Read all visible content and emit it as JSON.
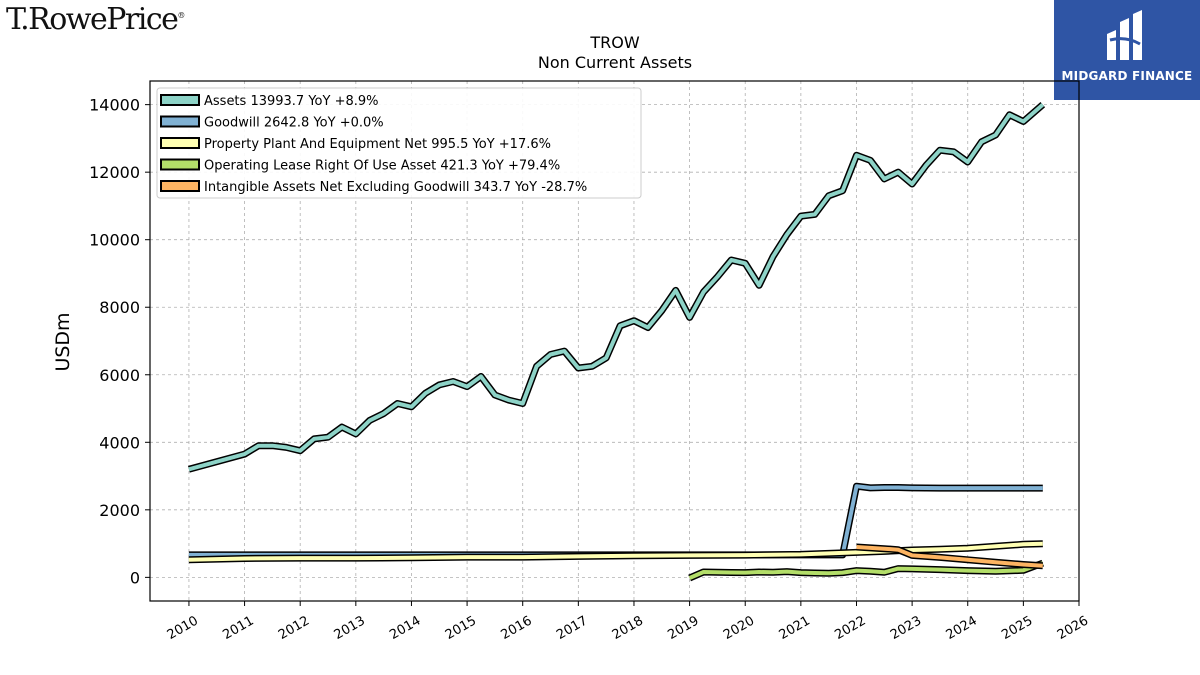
{
  "brand": {
    "logo_text": "T.RowePrice",
    "registered_mark": "®"
  },
  "partner": {
    "name": "MIDGARD FINANCE"
  },
  "chart_data": {
    "type": "line",
    "title": "TROW",
    "subtitle": "Non Current  Assets",
    "ylabel": "USDm",
    "xlabel": "",
    "xlim": [
      2009.3,
      2026.0
    ],
    "ylim": [
      -700,
      14700
    ],
    "yticks": [
      0,
      2000,
      4000,
      6000,
      8000,
      10000,
      12000,
      14000
    ],
    "xticks": [
      2010,
      2011,
      2012,
      2013,
      2014,
      2015,
      2016,
      2017,
      2018,
      2019,
      2020,
      2021,
      2022,
      2023,
      2024,
      2025,
      2026
    ],
    "grid": true,
    "legend_position": "top-left",
    "series": [
      {
        "name": "Assets",
        "legend_label": "Assets  13993.7 YoY +8.9%",
        "color": "#8dd3c7",
        "points": [
          [
            2010.0,
            3200
          ],
          [
            2011.0,
            3650
          ],
          [
            2011.25,
            3900
          ],
          [
            2011.5,
            3900
          ],
          [
            2011.75,
            3850
          ],
          [
            2012.0,
            3750
          ],
          [
            2012.25,
            4100
          ],
          [
            2012.5,
            4150
          ],
          [
            2012.75,
            4450
          ],
          [
            2013.0,
            4250
          ],
          [
            2013.25,
            4650
          ],
          [
            2013.5,
            4850
          ],
          [
            2013.75,
            5150
          ],
          [
            2014.0,
            5050
          ],
          [
            2014.25,
            5450
          ],
          [
            2014.5,
            5700
          ],
          [
            2014.75,
            5800
          ],
          [
            2015.0,
            5650
          ],
          [
            2015.25,
            5950
          ],
          [
            2015.5,
            5400
          ],
          [
            2015.75,
            5250
          ],
          [
            2016.0,
            5150
          ],
          [
            2016.25,
            6250
          ],
          [
            2016.5,
            6600
          ],
          [
            2016.75,
            6700
          ],
          [
            2017.0,
            6200
          ],
          [
            2017.25,
            6250
          ],
          [
            2017.5,
            6500
          ],
          [
            2017.75,
            7450
          ],
          [
            2018.0,
            7600
          ],
          [
            2018.25,
            7400
          ],
          [
            2018.5,
            7900
          ],
          [
            2018.75,
            8500
          ],
          [
            2019.0,
            7700
          ],
          [
            2019.25,
            8450
          ],
          [
            2019.5,
            8900
          ],
          [
            2019.75,
            9400
          ],
          [
            2020.0,
            9300
          ],
          [
            2020.25,
            8650
          ],
          [
            2020.5,
            9500
          ],
          [
            2020.75,
            10150
          ],
          [
            2021.0,
            10700
          ],
          [
            2021.25,
            10750
          ],
          [
            2021.5,
            11300
          ],
          [
            2021.75,
            11450
          ],
          [
            2022.0,
            12500
          ],
          [
            2022.25,
            12350
          ],
          [
            2022.5,
            11800
          ],
          [
            2022.75,
            12000
          ],
          [
            2023.0,
            11650
          ],
          [
            2023.25,
            12200
          ],
          [
            2023.5,
            12650
          ],
          [
            2023.75,
            12600
          ],
          [
            2024.0,
            12300
          ],
          [
            2024.25,
            12900
          ],
          [
            2024.5,
            13100
          ],
          [
            2024.75,
            13700
          ],
          [
            2025.0,
            13500
          ],
          [
            2025.35,
            14000
          ]
        ]
      },
      {
        "name": "Goodwill",
        "legend_label": "Goodwill  2642.8 YoY +0.0%",
        "color": "#80b1d3",
        "points": [
          [
            2010.0,
            665
          ],
          [
            2011.0,
            665
          ],
          [
            2012.0,
            665
          ],
          [
            2013.0,
            665
          ],
          [
            2014.0,
            665
          ],
          [
            2015.0,
            665
          ],
          [
            2016.0,
            665
          ],
          [
            2017.0,
            665
          ],
          [
            2018.0,
            665
          ],
          [
            2019.0,
            665
          ],
          [
            2020.0,
            665
          ],
          [
            2021.0,
            665
          ],
          [
            2021.75,
            665
          ],
          [
            2022.0,
            2700
          ],
          [
            2022.25,
            2650
          ],
          [
            2022.5,
            2660
          ],
          [
            2022.75,
            2660
          ],
          [
            2023.0,
            2650
          ],
          [
            2023.5,
            2643
          ],
          [
            2024.0,
            2643
          ],
          [
            2024.5,
            2643
          ],
          [
            2025.0,
            2643
          ],
          [
            2025.35,
            2643
          ]
        ]
      },
      {
        "name": "Property Plant And Equipment Net",
        "legend_label": "Property Plant And Equipment Net  995.5 YoY +17.6%",
        "color": "#ffffb3",
        "points": [
          [
            2010.0,
            520
          ],
          [
            2011.0,
            560
          ],
          [
            2012.0,
            570
          ],
          [
            2013.0,
            570
          ],
          [
            2014.0,
            580
          ],
          [
            2015.0,
            600
          ],
          [
            2016.0,
            600
          ],
          [
            2017.0,
            620
          ],
          [
            2018.0,
            640
          ],
          [
            2019.0,
            650
          ],
          [
            2020.0,
            660
          ],
          [
            2021.0,
            680
          ],
          [
            2022.0,
            740
          ],
          [
            2022.5,
            770
          ],
          [
            2023.0,
            810
          ],
          [
            2023.5,
            830
          ],
          [
            2024.0,
            860
          ],
          [
            2024.5,
            920
          ],
          [
            2025.0,
            980
          ],
          [
            2025.35,
            995
          ]
        ]
      },
      {
        "name": "Operating Lease Right Of Use Asset",
        "legend_label": "Operating Lease Right Of Use Asset  421.3 YoY +79.4%",
        "color": "#b3de69",
        "points": [
          [
            2019.0,
            -20
          ],
          [
            2019.25,
            160
          ],
          [
            2019.5,
            150
          ],
          [
            2019.75,
            145
          ],
          [
            2020.0,
            140
          ],
          [
            2020.25,
            160
          ],
          [
            2020.5,
            150
          ],
          [
            2020.75,
            170
          ],
          [
            2021.0,
            140
          ],
          [
            2021.25,
            130
          ],
          [
            2021.5,
            120
          ],
          [
            2021.75,
            140
          ],
          [
            2022.0,
            200
          ],
          [
            2022.25,
            180
          ],
          [
            2022.5,
            150
          ],
          [
            2022.75,
            260
          ],
          [
            2023.0,
            250
          ],
          [
            2023.5,
            230
          ],
          [
            2024.0,
            200
          ],
          [
            2024.5,
            180
          ],
          [
            2025.0,
            210
          ],
          [
            2025.35,
            421
          ]
        ]
      },
      {
        "name": "Intangible Assets Net Excluding Goodwill",
        "legend_label": "Intangible Assets Net Excluding Goodwill  343.7 YoY -28.7%",
        "color": "#fdb462",
        "points": [
          [
            2022.0,
            900
          ],
          [
            2022.5,
            850
          ],
          [
            2022.75,
            820
          ],
          [
            2023.0,
            650
          ],
          [
            2023.5,
            590
          ],
          [
            2024.0,
            520
          ],
          [
            2024.5,
            450
          ],
          [
            2025.0,
            380
          ],
          [
            2025.35,
            344
          ]
        ]
      }
    ]
  }
}
